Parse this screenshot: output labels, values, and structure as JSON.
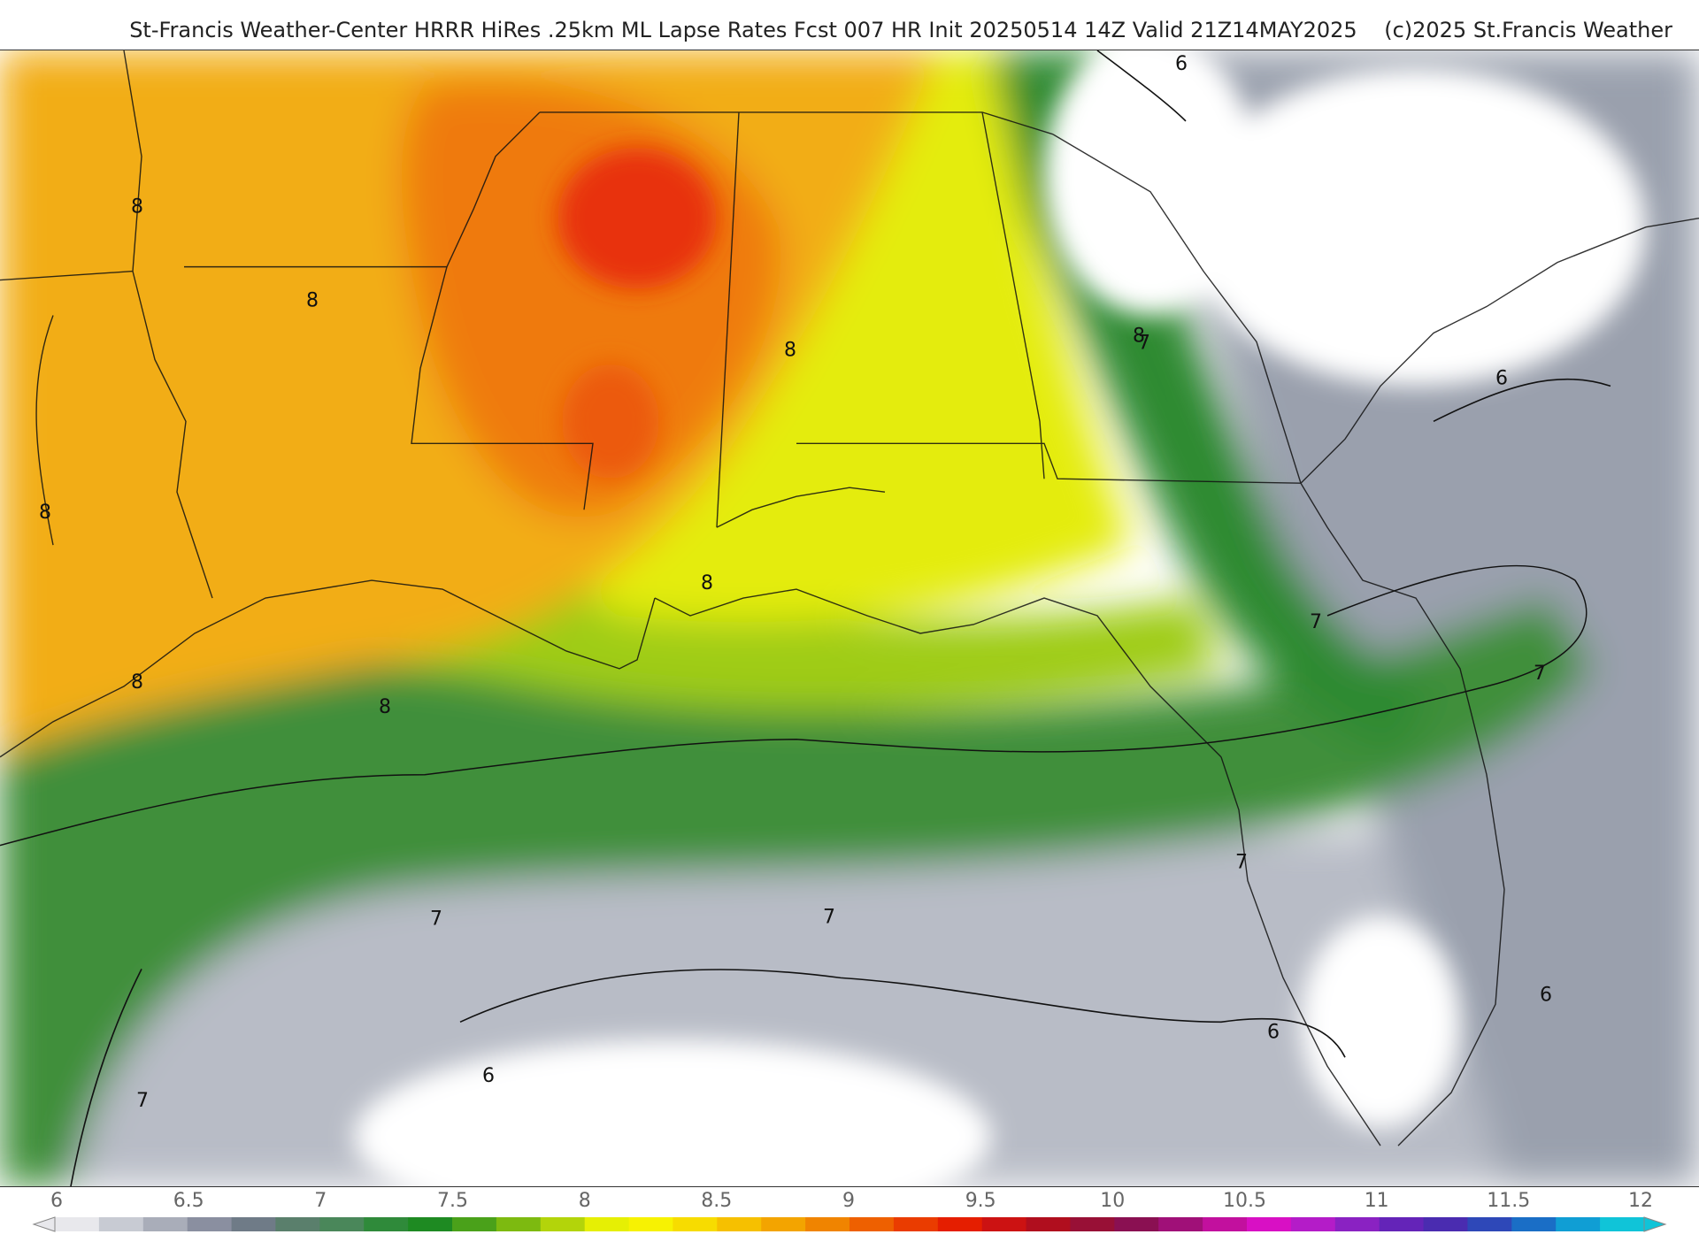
{
  "header": {
    "title": "St-Francis Weather-Center HRRR HiRes .25km ML Lapse Rates  Fcst 007 HR Init 20250514 14Z  Valid 21Z14MAY2025",
    "copyright": "(c)2025 St.Francis Weather"
  },
  "map": {
    "region": "Southeastern United States / Gulf of Mexico",
    "variable": "ML Lapse Rates",
    "contour_labels": [
      "8",
      "8",
      "8",
      "8",
      "8",
      "8",
      "8",
      "8",
      "7",
      "7",
      "7",
      "7",
      "7",
      "7",
      "7",
      "6",
      "6",
      "6",
      "6",
      "6"
    ]
  },
  "colorbar": {
    "ticks": [
      "6",
      "6.5",
      "7",
      "7.5",
      "8",
      "8.5",
      "9",
      "9.5",
      "10",
      "10.5",
      "11",
      "11.5",
      "12"
    ],
    "colors": [
      "#e8e8ec",
      "#c8cbd3",
      "#a9adb9",
      "#8a8fa0",
      "#6f7b87",
      "#5a7f6c",
      "#4a875a",
      "#2f8a3a",
      "#1e8a22",
      "#4aa11a",
      "#7dba10",
      "#b3d40a",
      "#e6ef04",
      "#f7f202",
      "#f7dc00",
      "#f6c000",
      "#f3a400",
      "#f08400",
      "#ee6000",
      "#ea3c00",
      "#e51e00",
      "#cc1212",
      "#b00e1e",
      "#981036",
      "#8a1052",
      "#a01078",
      "#c2109e",
      "#d810c4",
      "#b41cc8",
      "#8a22c2",
      "#6424b8",
      "#4a2cb0",
      "#2e48b8",
      "#1a6ec6",
      "#109ed4",
      "#10c4d8"
    ],
    "accent": "#10c4d8"
  }
}
